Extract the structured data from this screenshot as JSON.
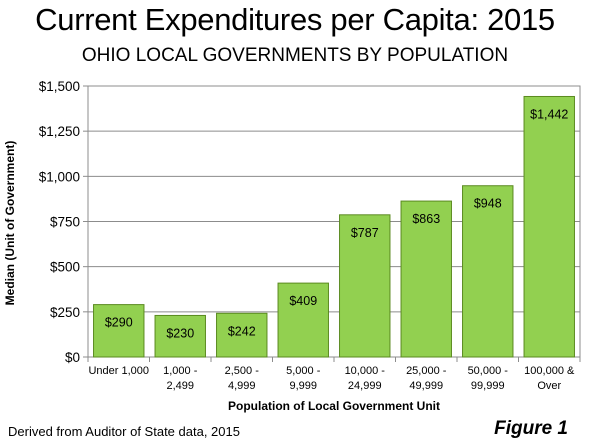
{
  "chart_data": {
    "type": "bar",
    "title": "Current Expenditures per Capita: 2015",
    "subtitle": "OHIO LOCAL GOVERNMENTS BY POPULATION",
    "xlabel": "Population of Local Government Unit",
    "ylabel": "Median  (Unit of Government)",
    "ylim": [
      0,
      1500
    ],
    "yticks": [
      0,
      250,
      500,
      750,
      1000,
      1250,
      1500
    ],
    "ytick_labels": [
      "$0",
      "$250",
      "$500",
      "$750",
      "$1,000",
      "$1,250",
      "$1,500"
    ],
    "grid": true,
    "categories": [
      [
        "Under 1,000"
      ],
      [
        "1,000 -",
        "2,499"
      ],
      [
        "2,500 -",
        "4,999"
      ],
      [
        "5,000 -",
        "9,999"
      ],
      [
        "10,000 -",
        "24,999"
      ],
      [
        "25,000 -",
        "49,999"
      ],
      [
        "50,000 -",
        "99,999"
      ],
      [
        "100,000 &",
        "Over"
      ]
    ],
    "values": [
      290,
      230,
      242,
      409,
      787,
      863,
      948,
      1442
    ],
    "value_labels": [
      "$290",
      "$230",
      "$242",
      "$409",
      "$787",
      "$863",
      "$948",
      "$1,442"
    ],
    "bar_color": "#92d050",
    "bar_edge_color": "#5a8a1f",
    "source": "Derived from Auditor of State data, 2015",
    "figure_label": "Figure 1"
  }
}
